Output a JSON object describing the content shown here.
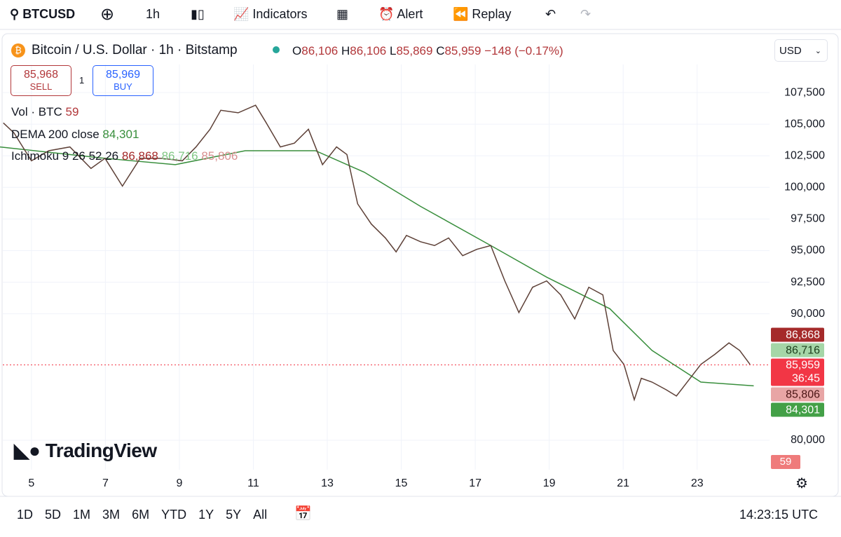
{
  "toolbar": {
    "symbol": "BTCUSD",
    "interval": "1h",
    "indicators": "Indicators",
    "alert": "Alert",
    "replay": "Replay"
  },
  "legend": {
    "title": "Bitcoin / U.S. Dollar · 1h · Bitstamp",
    "open_key": "O",
    "open": "86,106",
    "high_key": "H",
    "high": "86,106",
    "low_key": "L",
    "low": "85,869",
    "close_key": "C",
    "change": "−148 (−0.17%)"
  },
  "trade": {
    "sell_price": "85,968",
    "sell": "SELL",
    "quantity": "1",
    "buy_price": "85,969",
    "buy": "BUY"
  },
  "indicators": {
    "volume": "Vol · BTC",
    "volume_value": "59",
    "ichimoku": "Ichimoku",
    "ichimoku_params": "9 26 52 26"
  },
  "currency": "USD",
  "logo": "TradingView",
  "timeframes": [
    "1D",
    "5D",
    "1M",
    "3M",
    "6M",
    "YTD",
    "1Y",
    "5Y",
    "All"
  ],
  "clock": "14:23:15 UTC",
  "chart_data": {
    "type": "line",
    "xlim": [
      4.15,
      24.9
    ],
    "xticks": [
      5,
      7,
      9,
      11,
      13,
      15,
      17,
      19,
      21,
      23
    ],
    "ylim": [
      77670,
      109720
    ],
    "yticks": [
      {
        "value": 80000,
        "label": "80,000"
      },
      {
        "value": 90000,
        "label": "90,000"
      },
      {
        "value": 92500,
        "label": "92,500"
      },
      {
        "value": 95000,
        "label": "95,000"
      },
      {
        "value": 97500,
        "label": "97,500"
      },
      {
        "value": 100000,
        "label": "100,000"
      },
      {
        "value": 102500,
        "label": "102,500"
      },
      {
        "value": 105000,
        "label": "105,000"
      },
      {
        "value": 107500,
        "label": "107,500"
      }
    ],
    "grid": true,
    "price": {
      "color": "#5d4037",
      "x": [
        4.24,
        4.53,
        5.0,
        5.47,
        6.04,
        6.61,
        6.99,
        7.46,
        7.94,
        8.51,
        9.08,
        9.45,
        9.83,
        10.12,
        10.59,
        11.06,
        11.35,
        11.73,
        12.11,
        12.49,
        12.87,
        13.25,
        13.53,
        13.82,
        14.19,
        14.57,
        14.86,
        15.14,
        15.52,
        15.9,
        16.28,
        16.66,
        17.04,
        17.42,
        17.8,
        18.18,
        18.55,
        18.93,
        19.31,
        19.69,
        20.07,
        20.45,
        20.73,
        21.02,
        21.3,
        21.49,
        21.78,
        22.16,
        22.44,
        22.73,
        23.1,
        23.48,
        23.86,
        24.15,
        24.43
      ],
      "values": [
        105100,
        104300,
        102100,
        102900,
        103200,
        101500,
        102300,
        100100,
        102300,
        102300,
        102100,
        103200,
        104600,
        106100,
        105900,
        106500,
        105100,
        103200,
        103500,
        104600,
        101800,
        103200,
        102600,
        98700,
        97100,
        96000,
        94900,
        96200,
        95700,
        95400,
        96000,
        94600,
        95100,
        95400,
        92600,
        90100,
        92100,
        92600,
        91500,
        89600,
        92100,
        91500,
        87100,
        86000,
        83200,
        84900,
        84600,
        84000,
        83500,
        84600,
        86000,
        86800,
        87700,
        87100,
        86000
      ]
    },
    "series": [
      {
        "name": "DEMA 200 close",
        "color": "#388e3c",
        "x": [
          4.15,
          6.99,
          8.89,
          10.78,
          12.68,
          14.0,
          15.52,
          17.42,
          18.93,
          20.64,
          21.78,
          23.1,
          24.53
        ],
        "values": [
          103200,
          102300,
          101800,
          102900,
          102900,
          101200,
          98500,
          95400,
          92900,
          90400,
          87100,
          84600,
          84301
        ]
      }
    ],
    "last_price": {
      "value": 85959,
      "label": "85,959",
      "countdown": "36:45",
      "color": "#f23645"
    },
    "levels": [
      {
        "value": 86868,
        "label": "86,868",
        "color": "#a52a2a",
        "text_color": "#ffffff"
      },
      {
        "value": 86716,
        "label": "86,716",
        "color": "#a5d6a7",
        "text_color": "#1b3d1b"
      },
      {
        "value": 85806,
        "label": "85,806",
        "color": "#e8a5a5",
        "text_color": "#4a1414"
      },
      {
        "value": 84301,
        "label": "84,301",
        "color": "#43a047",
        "text_color": "#ffffff"
      }
    ]
  }
}
